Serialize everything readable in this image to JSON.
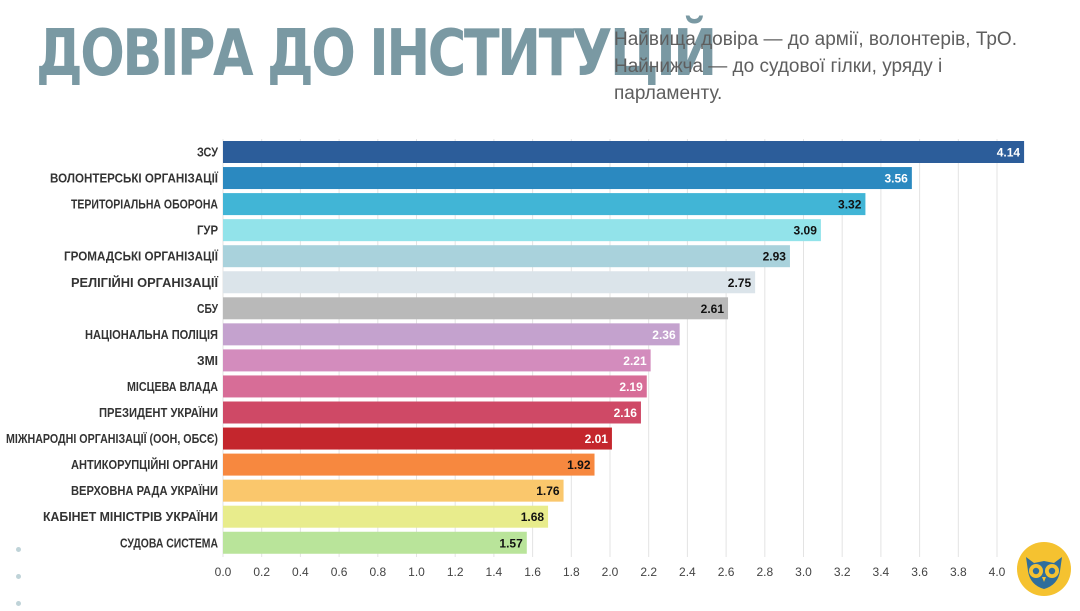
{
  "header": {
    "title": "ДОВІРА ДО ІНСТИТУЦІЙ",
    "subtitle": "Найвища довіра — до армії, волонтерів, ТрО. Найнижча — до судової гілки, уряду і парламенту."
  },
  "chart_data": {
    "type": "bar",
    "orientation": "horizontal",
    "title": "",
    "xlabel": "",
    "ylabel": "",
    "xlim": [
      0,
      4.14
    ],
    "grid": true,
    "x_ticks": [
      "0.0",
      "0.2",
      "0.4",
      "0.6",
      "0.8",
      "1.0",
      "1.2",
      "1.4",
      "1.6",
      "1.8",
      "2.0",
      "2.2",
      "2.4",
      "2.6",
      "2.8",
      "3.0",
      "3.2",
      "3.4",
      "3.6",
      "3.8",
      "4.0"
    ],
    "categories": [
      "ЗСУ",
      "ВОЛОНТЕРСЬКІ ОРГАНІЗАЦІЇ",
      "ТЕРИТОРІАЛЬНА ОБОРОНА",
      "ГУР",
      "ГРОМАДСЬКІ ОРГАНІЗАЦІЇ",
      "РЕЛІГІЙНІ ОРГАНІЗАЦІЇ",
      "СБУ",
      "НАЦІОНАЛЬНА ПОЛІЦІЯ",
      "ЗМІ",
      "МІСЦЕВА ВЛАДА",
      "ПРЕЗИДЕНТ УКРАЇНИ",
      "МІЖНАРОДНІ ОРГАНІЗАЦІЇ (ООН, ОБСЄ)",
      "АНТИКОРУПЦІЙНІ ОРГАНИ",
      "ВЕРХОВНА РАДА УКРАЇНИ",
      "КАБІНЕТ МІНІСТРІВ УКРАЇНИ",
      "СУДОВА СИСТЕМА"
    ],
    "values": [
      4.14,
      3.56,
      3.32,
      3.09,
      2.93,
      2.75,
      2.61,
      2.36,
      2.21,
      2.19,
      2.16,
      2.01,
      1.92,
      1.76,
      1.68,
      1.57
    ],
    "value_labels": [
      "4.14",
      "3.56",
      "3.32",
      "3.09",
      "2.93",
      "2.75",
      "2.61",
      "2.36",
      "2.21",
      "2.19",
      "2.16",
      "2.01",
      "1.92",
      "1.76",
      "1.68",
      "1.57"
    ],
    "bar_colors": [
      "#2c5d9a",
      "#2b89c0",
      "#41b5d6",
      "#92e3ea",
      "#a9d2dc",
      "#dbe4ea",
      "#b9b9b9",
      "#c4a2ce",
      "#d38cbd",
      "#d76d97",
      "#cf4966",
      "#c4262d",
      "#f7883f",
      "#fac76c",
      "#e8ec8c",
      "#b9e49a"
    ],
    "value_label_colors": [
      "#ffffff",
      "#ffffff",
      "#111111",
      "#111111",
      "#111111",
      "#111111",
      "#111111",
      "#ffffff",
      "#ffffff",
      "#ffffff",
      "#ffffff",
      "#ffffff",
      "#111111",
      "#111111",
      "#111111",
      "#111111"
    ]
  },
  "colors": {
    "title": "#7a99a3",
    "subtitle": "#5e5e5e",
    "grid": "#e3e3e3",
    "logo_bg": "#f5c230",
    "logo_owl": "#2f6e9c"
  },
  "decorations": {
    "logo": "owl-logo-icon",
    "side_dots": "dots-icon"
  }
}
